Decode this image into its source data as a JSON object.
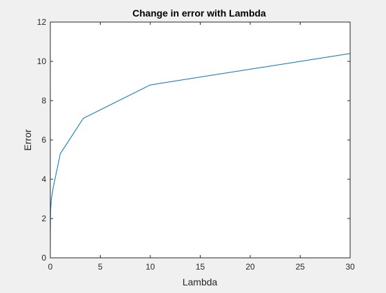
{
  "chart_data": {
    "type": "line",
    "title": "Change in error with Lambda",
    "xlabel": "Lambda",
    "ylabel": "Error",
    "xlim": [
      0,
      30
    ],
    "ylim": [
      0,
      12
    ],
    "xticks": [
      0,
      5,
      10,
      15,
      20,
      25,
      30
    ],
    "yticks": [
      0,
      2,
      4,
      6,
      8,
      10,
      12
    ],
    "grid": false,
    "series": [
      {
        "color": "#0072bd",
        "x": [
          0,
          0.001,
          0.003,
          0.01,
          0.03,
          0.1,
          0.3,
          1,
          3.3,
          10,
          30
        ],
        "y": [
          0.1,
          0.3,
          0.7,
          1.4,
          2.4,
          3.0,
          3.6,
          5.3,
          7.1,
          8.8,
          10.4
        ]
      }
    ]
  }
}
